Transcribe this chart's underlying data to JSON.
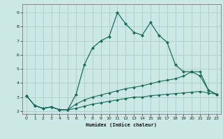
{
  "xlabel": "Humidex (Indice chaleur)",
  "bg_color": "#cce8e4",
  "grid_color": "#aacccc",
  "line_color": "#1a6b5a",
  "xlim": [
    -0.5,
    23.5
  ],
  "ylim": [
    1.8,
    9.6
  ],
  "yticks": [
    2,
    3,
    4,
    5,
    6,
    7,
    8,
    9
  ],
  "xticks": [
    0,
    1,
    2,
    3,
    4,
    5,
    6,
    7,
    8,
    9,
    10,
    11,
    12,
    13,
    14,
    15,
    16,
    17,
    18,
    19,
    20,
    21,
    22,
    23
  ],
  "series1_x": [
    0,
    1,
    2,
    3,
    4,
    5,
    6,
    7,
    8,
    9,
    10,
    11,
    12,
    13,
    14,
    15,
    16,
    17,
    18,
    19,
    20,
    21,
    22,
    23
  ],
  "series1_y": [
    3.1,
    2.4,
    2.2,
    2.3,
    2.1,
    2.1,
    3.2,
    5.3,
    6.5,
    7.0,
    7.3,
    9.0,
    8.2,
    7.6,
    7.4,
    8.3,
    7.4,
    6.9,
    5.3,
    4.8,
    4.8,
    4.5,
    3.5,
    3.2
  ],
  "series2_x": [
    0,
    1,
    2,
    3,
    4,
    5,
    6,
    7,
    8,
    9,
    10,
    11,
    12,
    13,
    14,
    15,
    16,
    17,
    18,
    19,
    20,
    21,
    22,
    23
  ],
  "series2_y": [
    3.1,
    2.4,
    2.2,
    2.3,
    2.1,
    2.1,
    2.5,
    2.8,
    3.0,
    3.15,
    3.3,
    3.45,
    3.6,
    3.7,
    3.8,
    3.95,
    4.1,
    4.2,
    4.3,
    4.5,
    4.8,
    4.8,
    3.5,
    3.2
  ],
  "series3_x": [
    0,
    1,
    2,
    3,
    4,
    5,
    6,
    7,
    8,
    9,
    10,
    11,
    12,
    13,
    14,
    15,
    16,
    17,
    18,
    19,
    20,
    21,
    22,
    23
  ],
  "series3_y": [
    3.1,
    2.4,
    2.2,
    2.3,
    2.1,
    2.1,
    2.2,
    2.35,
    2.5,
    2.6,
    2.7,
    2.8,
    2.9,
    3.0,
    3.0,
    3.1,
    3.15,
    3.2,
    3.25,
    3.3,
    3.35,
    3.4,
    3.3,
    3.2
  ]
}
